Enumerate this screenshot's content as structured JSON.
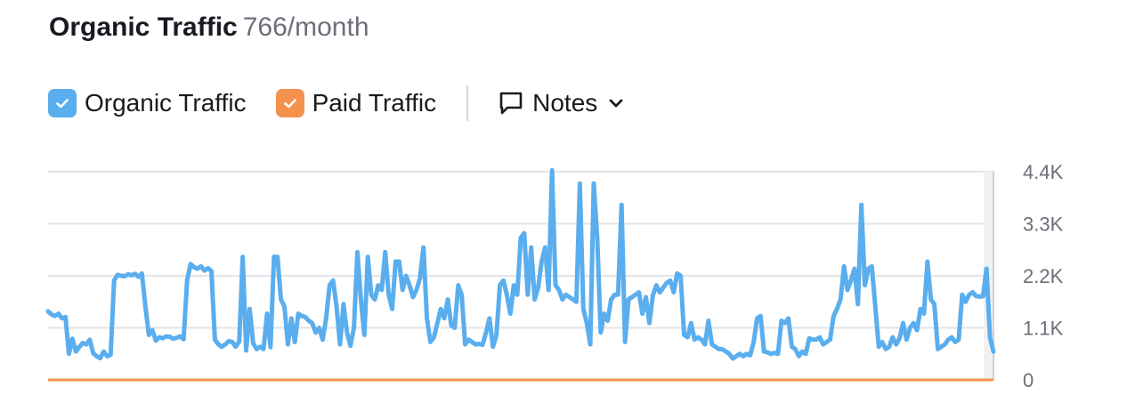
{
  "header": {
    "title": "Organic Traffic",
    "value": "766/month"
  },
  "legend": {
    "items": [
      {
        "label": "Organic Traffic",
        "color": "#5aaeee",
        "checked": true
      },
      {
        "label": "Paid Traffic",
        "color": "#f4914c",
        "checked": true
      }
    ],
    "notes_label": "Notes"
  },
  "chart_data": {
    "type": "line",
    "ylim": [
      0,
      4400
    ],
    "y_ticks": [
      "4.4K",
      "3.3K",
      "2.2K",
      "1.1K",
      "0"
    ],
    "y_tick_values": [
      4400,
      3300,
      2200,
      1100,
      0
    ],
    "x_axis": "unlabeled",
    "grid": true,
    "series": [
      {
        "name": "Organic Traffic",
        "color": "#5aaeee",
        "values": [
          1450,
          1380,
          1350,
          1400,
          1300,
          1330,
          550,
          870,
          600,
          700,
          780,
          750,
          850,
          560,
          500,
          460,
          600,
          500,
          530,
          2100,
          2220,
          2200,
          2190,
          2230,
          2210,
          2240,
          2180,
          2250,
          1550,
          950,
          1050,
          830,
          900,
          880,
          920,
          910,
          870,
          890,
          920,
          860,
          2100,
          2450,
          2380,
          2350,
          2400,
          2310,
          2360,
          2300,
          850,
          750,
          700,
          750,
          820,
          800,
          700,
          810,
          2600,
          620,
          1500,
          780,
          650,
          700,
          650,
          1400,
          690,
          2600,
          2600,
          1700,
          1550,
          750,
          1300,
          800,
          1400,
          1350,
          1330,
          1250,
          1200,
          1000,
          1100,
          850,
          1300,
          2000,
          2100,
          1550,
          750,
          1600,
          1000,
          720,
          1100,
          2700,
          1700,
          950,
          2600,
          1800,
          1700,
          2000,
          1900,
          2700,
          1800,
          1500,
          2500,
          2500,
          1900,
          2200,
          2000,
          1750,
          1900,
          2150,
          2800,
          1300,
          800,
          900,
          1200,
          1500,
          1300,
          1700,
          1150,
          1100,
          2000,
          1800,
          750,
          850,
          800,
          750,
          760,
          740,
          1000,
          1300,
          700,
          950,
          2000,
          2100,
          1800,
          1400,
          2000,
          1800,
          3000,
          3100,
          1800,
          2800,
          1700,
          1950,
          2500,
          2800,
          1900,
          4430,
          2000,
          1900,
          1700,
          1800,
          1750,
          1700,
          1650,
          4150,
          1500,
          1200,
          750,
          4150,
          3000,
          1000,
          1400,
          1250,
          1700,
          1800,
          1800,
          3700,
          800,
          1700,
          1750,
          1800,
          1850,
          1400,
          1750,
          1200,
          1780,
          2000,
          1850,
          1950,
          2050,
          2100,
          1850,
          2250,
          2200,
          950,
          900,
          1200,
          850,
          900,
          850,
          750,
          1250,
          750,
          700,
          650,
          650,
          600,
          550,
          450,
          500,
          550,
          500,
          550,
          520,
          800,
          1300,
          1350,
          600,
          580,
          550,
          570,
          550,
          1250,
          1200,
          1300,
          700,
          650,
          500,
          600,
          550,
          880,
          850,
          850,
          900,
          750,
          800,
          850,
          1350,
          1500,
          1700,
          2400,
          1900,
          2100,
          2350,
          1600,
          3700,
          2000,
          2350,
          2400,
          1550,
          700,
          800,
          650,
          700,
          900,
          750,
          880,
          1200,
          850,
          1100,
          1200,
          1050,
          1500,
          1400,
          2500,
          1700,
          1600,
          650,
          700,
          750,
          850,
          900,
          800,
          850,
          1800,
          1650,
          1800,
          1850,
          1770,
          1760,
          1770,
          2350,
          900,
          600
        ]
      },
      {
        "name": "Paid Traffic",
        "color": "#f4914c",
        "values": [
          0,
          0
        ]
      }
    ]
  }
}
